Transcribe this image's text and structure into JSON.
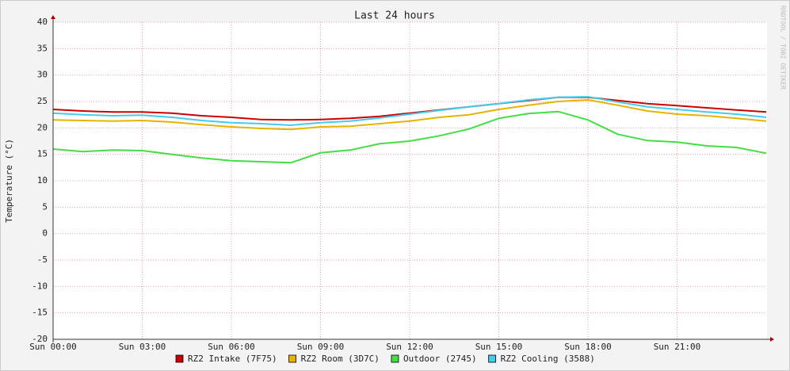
{
  "chart_data": {
    "type": "line",
    "title": "Last 24 hours",
    "y_label": "Temperature (°C)",
    "watermark": "RRDTOOL / TOBI OETIKER",
    "x": [
      0,
      1,
      2,
      3,
      4,
      5,
      6,
      7,
      8,
      9,
      10,
      11,
      12,
      13,
      14,
      15,
      16,
      17,
      18,
      19,
      20,
      21,
      22,
      23,
      24
    ],
    "xlim": [
      0,
      24
    ],
    "xticks": [
      {
        "value": 0,
        "label": "Sun 00:00"
      },
      {
        "value": 3,
        "label": "Sun 03:00"
      },
      {
        "value": 6,
        "label": "Sun 06:00"
      },
      {
        "value": 9,
        "label": "Sun 09:00"
      },
      {
        "value": 12,
        "label": "Sun 12:00"
      },
      {
        "value": 15,
        "label": "Sun 15:00"
      },
      {
        "value": 18,
        "label": "Sun 18:00"
      },
      {
        "value": 21,
        "label": "Sun 21:00"
      }
    ],
    "ylim": [
      -20,
      40
    ],
    "yticks": [
      40,
      35,
      30,
      25,
      20,
      15,
      10,
      5,
      0,
      -5,
      -10,
      -15,
      -20
    ],
    "grid": true,
    "series": [
      {
        "name": "RZ2 Intake (7F75)",
        "color": "#cc0000",
        "values": [
          23.5,
          23.2,
          23,
          23,
          22.8,
          22.3,
          22,
          21.6,
          21.5,
          21.6,
          21.8,
          22.2,
          22.8,
          23.4,
          24,
          24.6,
          25.2,
          25.8,
          25.8,
          25.2,
          24.6,
          24.2,
          23.8,
          23.4,
          23
        ]
      },
      {
        "name": "RZ2 Room (3D7C)",
        "color": "#e6b400",
        "values": [
          21.5,
          21.4,
          21.3,
          21.4,
          21.1,
          20.6,
          20.2,
          19.9,
          19.7,
          20.2,
          20.3,
          20.8,
          21.3,
          22,
          22.5,
          23.5,
          24.3,
          25,
          25.3,
          24.3,
          23.2,
          22.6,
          22.3,
          21.8,
          21.3
        ]
      },
      {
        "name": "Outdoor (2745)",
        "color": "#44dd44",
        "values": [
          16,
          15.5,
          15.8,
          15.7,
          15,
          14.3,
          13.8,
          13.6,
          13.4,
          15.3,
          15.8,
          17,
          17.5,
          18.5,
          19.8,
          21.8,
          22.7,
          23.1,
          21.5,
          18.8,
          17.6,
          17.3,
          16.6,
          16.3,
          15.2
        ]
      },
      {
        "name": "RZ2 Cooling (3588)",
        "color": "#44ccee",
        "values": [
          22.8,
          22.5,
          22.3,
          22.4,
          22,
          21.4,
          21,
          20.8,
          20.5,
          21,
          21.3,
          21.9,
          22.6,
          23.3,
          24,
          24.6,
          25.3,
          25.8,
          25.9,
          24.9,
          24,
          23.5,
          23,
          22.6,
          22
        ]
      }
    ]
  }
}
